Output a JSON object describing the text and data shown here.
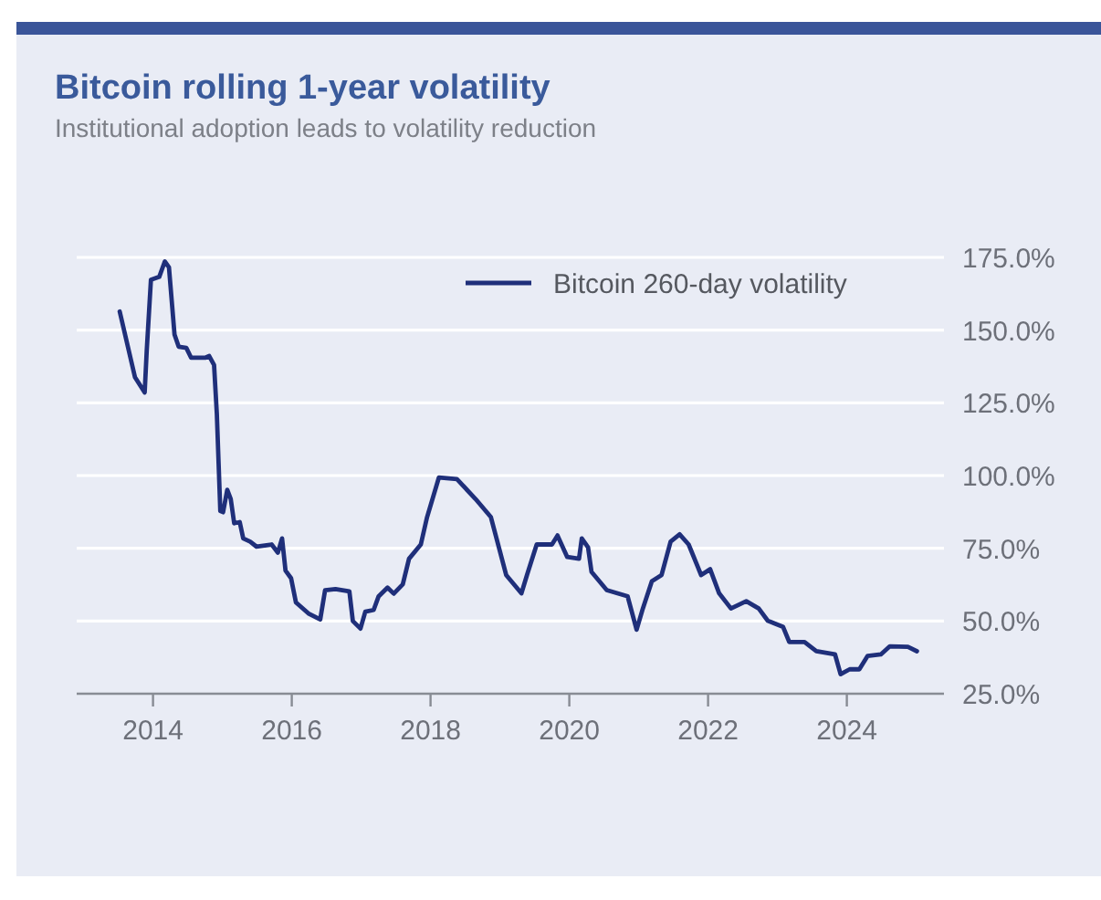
{
  "chart_data": {
    "type": "line",
    "title": "Bitcoin rolling 1-year volatility",
    "subtitle": "Institutional adoption leads to volatility reduction",
    "xlim": [
      2012.9,
      2025.4
    ],
    "xticks": [
      2014,
      2016,
      2018,
      2020,
      2022,
      2024
    ],
    "ylim": [
      25,
      175
    ],
    "yticks": [
      {
        "value": 25,
        "label": "25.0%"
      },
      {
        "value": 50,
        "label": "50.0%"
      },
      {
        "value": 75,
        "label": "75.0%"
      },
      {
        "value": 100,
        "label": "100.0%"
      },
      {
        "value": 125,
        "label": "125.0%"
      },
      {
        "value": 150,
        "label": "150.0%"
      },
      {
        "value": 175,
        "label": "175.0%"
      }
    ],
    "grid": "y",
    "legend": "top right",
    "marker": "none",
    "line_style": "solid",
    "series": [
      {
        "name": "Bitcoin 260-day volatility",
        "color": "#1f2f7a",
        "x": [
          2013.52,
          2013.74,
          2013.88,
          2013.91,
          2013.97,
          2014.09,
          2014.17,
          2014.23,
          2014.31,
          2014.37,
          2014.48,
          2014.55,
          2014.75,
          2014.81,
          2014.88,
          2014.92,
          2014.97,
          2015.01,
          2015.07,
          2015.12,
          2015.17,
          2015.25,
          2015.3,
          2015.4,
          2015.49,
          2015.71,
          2015.8,
          2015.86,
          2015.91,
          2015.99,
          2016.06,
          2016.24,
          2016.41,
          2016.48,
          2016.63,
          2016.83,
          2016.88,
          2016.99,
          2017.06,
          2017.18,
          2017.25,
          2017.38,
          2017.47,
          2017.6,
          2017.69,
          2017.86,
          2017.95,
          2018.12,
          2018.38,
          2018.65,
          2018.87,
          2019.09,
          2019.31,
          2019.39,
          2019.53,
          2019.75,
          2019.83,
          2019.97,
          2020.14,
          2020.18,
          2020.27,
          2020.32,
          2020.54,
          2020.84,
          2020.97,
          2021.06,
          2021.19,
          2021.33,
          2021.46,
          2021.59,
          2021.72,
          2021.9,
          2022.03,
          2022.16,
          2022.33,
          2022.55,
          2022.73,
          2022.86,
          2023.08,
          2023.17,
          2023.39,
          2023.56,
          2023.83,
          2023.91,
          2024.04,
          2024.18,
          2024.3,
          2024.49,
          2024.62,
          2024.88,
          2025.01
        ],
        "values": [
          156.4,
          133.8,
          128.6,
          143.2,
          167.3,
          168.3,
          173.6,
          171.6,
          148.5,
          144.3,
          143.9,
          140.5,
          140.5,
          141.1,
          138,
          121.2,
          87.8,
          87.4,
          95.1,
          92,
          83.6,
          84,
          78.4,
          77.3,
          75.6,
          76.3,
          73.5,
          78.4,
          67.3,
          64.7,
          56.4,
          52.6,
          50.5,
          60.6,
          61,
          60.2,
          50,
          47.4,
          53.2,
          53.8,
          58.4,
          61.5,
          59.4,
          62.6,
          71.4,
          76.3,
          85.7,
          99.3,
          98.8,
          91.9,
          85.7,
          65.8,
          59.5,
          65.8,
          76.3,
          76.3,
          79.4,
          72,
          71.4,
          78.4,
          75.3,
          66.9,
          60.6,
          58.5,
          47,
          54.3,
          63.7,
          65.8,
          77.3,
          79.8,
          76.3,
          65.8,
          67.8,
          59.5,
          54.3,
          56.8,
          54.3,
          50.1,
          48,
          42.8,
          42.8,
          39.6,
          38.5,
          31.7,
          33.4,
          33.4,
          38,
          38.5,
          41.3,
          41.1,
          39.6
        ]
      }
    ]
  }
}
